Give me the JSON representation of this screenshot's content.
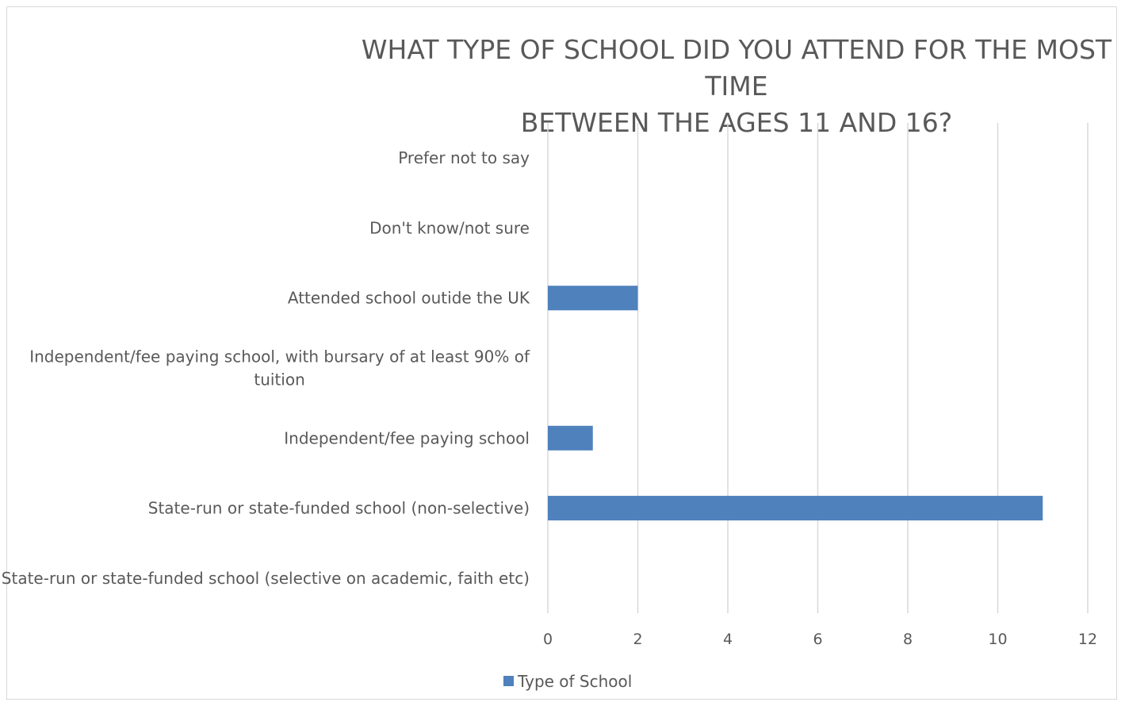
{
  "chart_data": {
    "type": "bar",
    "orientation": "horizontal",
    "title_lines": [
      "WHAT TYPE OF SCHOOL DID YOU ATTEND FOR THE MOST TIME",
      "BETWEEN THE AGES 11 AND 16?"
    ],
    "categories": [
      [
        "Prefer not to say"
      ],
      [
        "Don't know/not sure"
      ],
      [
        "Attended school outide the UK"
      ],
      [
        "Independent/fee paying school, with bursary of at least 90% of",
        "tuition"
      ],
      [
        "Independent/fee paying school"
      ],
      [
        "State-run or state-funded school (non-selective)"
      ],
      [
        "State-run or state-funded school (selective on academic, faith etc)"
      ]
    ],
    "series": [
      {
        "name": "Type of School",
        "values": [
          0,
          0,
          2,
          0,
          1,
          11,
          0
        ]
      }
    ],
    "xlim": [
      0,
      12
    ],
    "xticks": [
      "0",
      "2",
      "4",
      "6",
      "8",
      "10",
      "12"
    ],
    "grid": true,
    "legend_position": "bottom",
    "colors": {
      "bar": "#4f81bd",
      "grid": "#d9d9d9",
      "text": "#595959"
    }
  }
}
